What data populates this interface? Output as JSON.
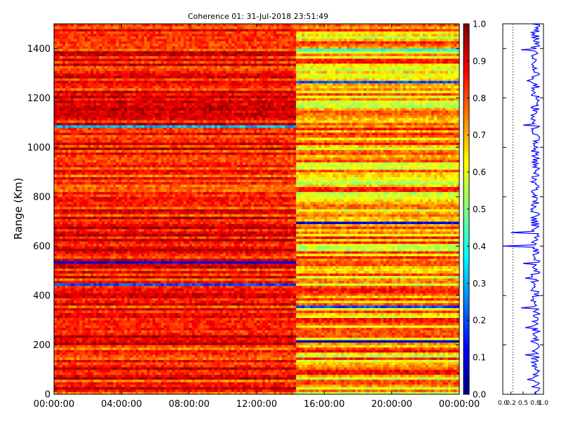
{
  "chart_data": [
    {
      "type": "heatmap",
      "title": "Coherence 01: 31-Jul-2018 23:51:49",
      "ylabel": "Range (Km)",
      "xlabel": "",
      "x_tick_labels": [
        "00:00:00",
        "04:00:00",
        "08:00:00",
        "12:00:00",
        "16:00:00",
        "20:00:00",
        "00:00:00"
      ],
      "x_range_hours": [
        0,
        24
      ],
      "y_ticks": [
        0,
        200,
        400,
        600,
        800,
        1000,
        1200,
        1400
      ],
      "ylim": [
        0,
        1500
      ],
      "colormap": "jet",
      "colorbar": {
        "ticks": [
          "0.0",
          "0.1",
          "0.2",
          "0.3",
          "0.4",
          "0.5",
          "0.6",
          "0.7",
          "0.8",
          "0.9",
          "1.0"
        ],
        "range": [
          0,
          1
        ]
      },
      "regime_change_time_hours": 14.3,
      "typical_coherence_before": 0.85,
      "typical_coherence_after": 0.72,
      "low_coherence_bands_km": [
        {
          "range": 1085,
          "value": 0.3,
          "segment": "before"
        },
        {
          "range": 530,
          "value": 0.1,
          "segment": "before"
        },
        {
          "range": 447,
          "value": 0.2,
          "segment": "before"
        },
        {
          "range": 1398,
          "value": 0.4,
          "segment": "after"
        },
        {
          "range": 1265,
          "value": 0.2,
          "segment": "after"
        },
        {
          "range": 695,
          "value": 0.1,
          "segment": "after"
        },
        {
          "range": 350,
          "value": 0.2,
          "segment": "after"
        },
        {
          "range": 212,
          "value": 0.05,
          "segment": "after"
        }
      ]
    },
    {
      "type": "line",
      "x_tick_labels": [
        "0.0",
        "0.2",
        "0.5",
        "0.8",
        "1.0"
      ],
      "xlim": [
        0,
        1
      ],
      "ylim": [
        0,
        1500
      ],
      "reference_line_x": 0.25,
      "mean_profile_value": 0.8,
      "line_color": "#0000ff",
      "dips": [
        {
          "range": 600,
          "value": 0.0
        },
        {
          "range": 655,
          "value": 0.2
        },
        {
          "range": 1395,
          "value": 0.45
        },
        {
          "range": 1270,
          "value": 0.6
        },
        {
          "range": 1090,
          "value": 0.5
        },
        {
          "range": 530,
          "value": 0.5
        },
        {
          "range": 350,
          "value": 0.45
        },
        {
          "range": 470,
          "value": 0.55
        },
        {
          "range": 270,
          "value": 0.55
        },
        {
          "range": 160,
          "value": 0.55
        },
        {
          "range": 60,
          "value": 0.6
        }
      ]
    }
  ]
}
